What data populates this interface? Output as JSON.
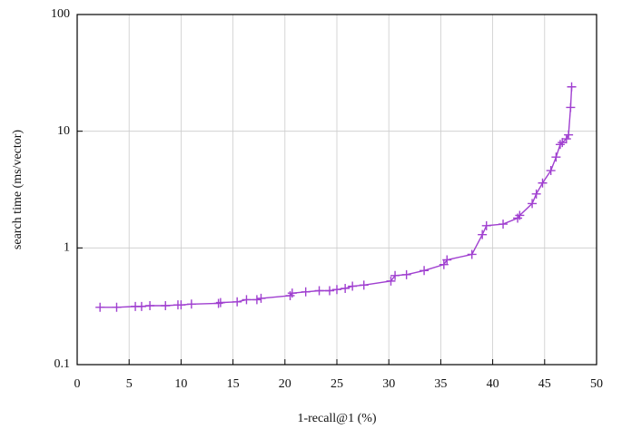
{
  "chart_data": {
    "type": "line",
    "x_label": "1-recall@1 (%)",
    "y_label": "search time (ms/vector)",
    "log_y": true,
    "grid": true,
    "xlim": [
      0,
      50
    ],
    "xticks": [
      0,
      5,
      10,
      15,
      20,
      25,
      30,
      35,
      40,
      45,
      50
    ],
    "ylim": [
      0.1,
      100
    ],
    "yticks": [
      0.1,
      1,
      10,
      100
    ],
    "series": [
      {
        "color": "#a040d0",
        "x": [
          2.2,
          3.8,
          5.6,
          6.2,
          7.0,
          8.5,
          9.7,
          10.0,
          11.0,
          13.6,
          13.8,
          15.4,
          16.3,
          17.3,
          17.7,
          20.5,
          20.7,
          22.0,
          23.3,
          24.3,
          25.0,
          25.8,
          26.5,
          27.6,
          30.2,
          30.6,
          31.7,
          33.4,
          35.3,
          35.6,
          38.0,
          39.0,
          39.4,
          41.0,
          42.4,
          42.6,
          43.8,
          44.2,
          44.8,
          45.6,
          46.1,
          46.5,
          46.7,
          47.1,
          47.3,
          47.5,
          47.6
        ],
        "values": [
          0.31,
          0.31,
          0.315,
          0.315,
          0.32,
          0.32,
          0.325,
          0.325,
          0.33,
          0.335,
          0.34,
          0.345,
          0.36,
          0.36,
          0.37,
          0.39,
          0.41,
          0.42,
          0.43,
          0.43,
          0.44,
          0.45,
          0.47,
          0.48,
          0.52,
          0.58,
          0.59,
          0.64,
          0.72,
          0.79,
          0.88,
          1.3,
          1.55,
          1.6,
          1.8,
          1.9,
          2.4,
          2.9,
          3.6,
          4.6,
          6.0,
          7.7,
          8.0,
          8.6,
          9.3,
          16,
          24
        ]
      }
    ]
  }
}
